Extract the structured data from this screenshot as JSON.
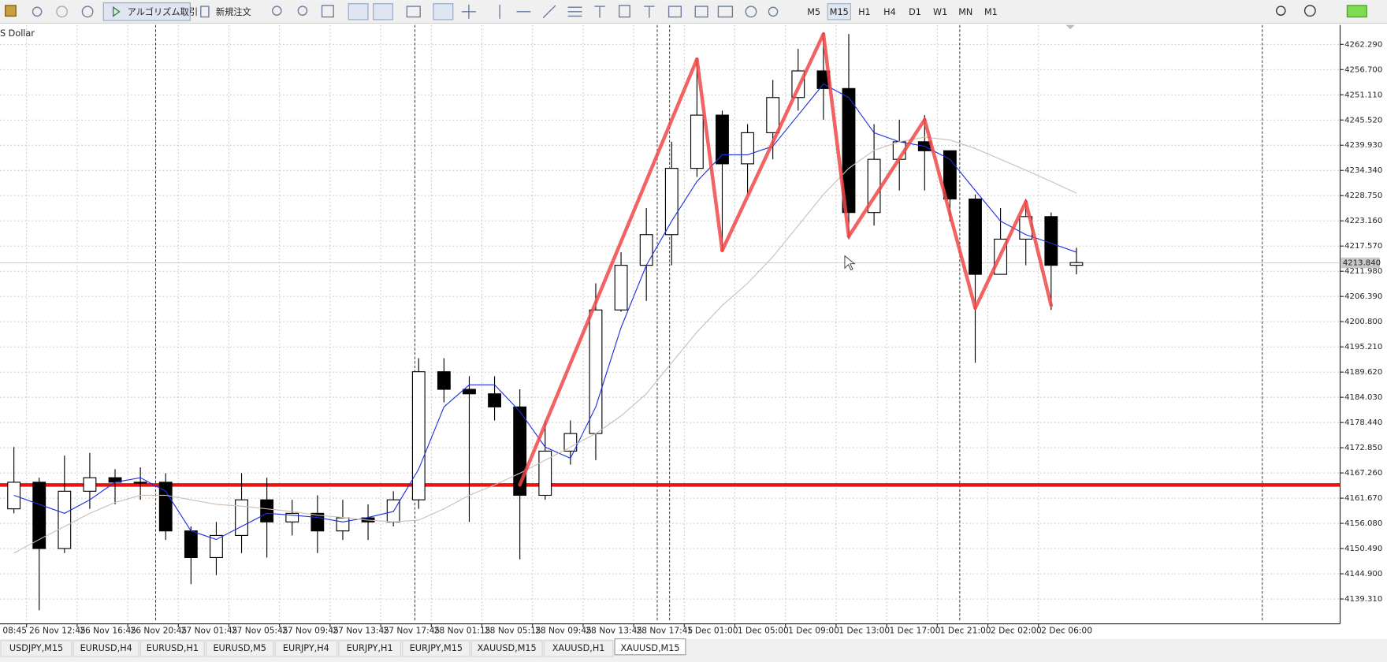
{
  "toolbar": {
    "algo": "アルゴリズム取引",
    "order": "新規注文",
    "timeframes": [
      "M5",
      "M15",
      "H1",
      "H4",
      "D1",
      "W1",
      "MN",
      "M1"
    ]
  },
  "tabs": [
    "USDJPY,M15",
    "EURUSD,H4",
    "EURUSD,H1",
    "EURUSD,M5",
    "EURJPY,H4",
    "EURJPY,H1",
    "EURJPY,M15",
    "XAUUSD,M15",
    "XAUUSD,H1",
    "XAUUSD,M15"
  ],
  "chart_data": {
    "type": "candlestick",
    "title": "S Dollar",
    "categories": [
      "08:45",
      null,
      "26 Nov 12:45",
      null,
      "26 Nov 16:45",
      null,
      "26 Nov 20:45",
      null,
      "27 Nov 01:45",
      null,
      "27 Nov 05:45",
      null,
      "27 Nov 09:45",
      null,
      "27 Nov 13:45",
      null,
      "27 Nov 17:45",
      null,
      "28 Nov 01:15",
      null,
      "28 Nov 05:15",
      null,
      "28 Nov 09:45",
      null,
      "28 Nov 13:45",
      null,
      "28 Nov 17:45",
      null,
      "1 Dec 01:00",
      null,
      "1 Dec 05:00",
      null,
      "1 Dec 09:00",
      null,
      "1 Dec 13:00",
      null,
      "1 Dec 17:00",
      null,
      "1 Dec 21:00",
      null,
      "2 Dec 02:00",
      null,
      "2 Dec 06:00",
      null
    ],
    "open": [
      null,
      4159.3,
      4165.2,
      4150.5,
      4163.2,
      4166.2,
      4165.2,
      4165.2,
      4154.4,
      4148.5,
      4153.4,
      4161.3,
      4156.4,
      4158.3,
      4154.4,
      4157.3,
      4156.4,
      4161.3,
      4189.7,
      4185.8,
      4184.8,
      4181.9,
      4162.3,
      4172.1,
      4176.0,
      4203.4,
      4213.3,
      4220.1,
      4234.8,
      4246.6,
      4235.8,
      4242.7,
      4250.5,
      4256.4,
      4252.5,
      4225.0,
      4236.8,
      4240.7,
      4238.7,
      4228.0,
      4211.3,
      4219.1,
      4224.1,
      4213.3
    ],
    "high": [
      null,
      4173.0,
      4166.2,
      4171.1,
      4171.7,
      4168.1,
      4168.5,
      4167.2,
      4155.4,
      4156.4,
      4167.2,
      4166.2,
      4161.3,
      4162.3,
      4161.3,
      4160.3,
      4163.2,
      4192.7,
      4192.7,
      4188.7,
      4188.7,
      4185.8,
      4178.9,
      4178.9,
      4209.3,
      4216.2,
      4226.0,
      4240.7,
      4258.4,
      4247.6,
      4244.6,
      4254.4,
      4261.3,
      4264.6,
      4264.6,
      4244.6,
      4245.6,
      4246.6,
      4238.7,
      4229.0,
      4226.0,
      4228.0,
      4225.0,
      4217.2
    ],
    "low": [
      null,
      4158.3,
      4136.8,
      4149.5,
      4159.3,
      4160.3,
      4161.3,
      4152.4,
      4142.6,
      4144.6,
      4149.5,
      4148.5,
      4153.4,
      4149.5,
      4152.4,
      4152.4,
      4155.4,
      4159.3,
      4182.9,
      4156.4,
      4178.9,
      4148.1,
      4161.3,
      4169.1,
      4170.1,
      4203.0,
      4205.4,
      4213.3,
      4232.9,
      4216.2,
      4229.0,
      4236.8,
      4247.6,
      4245.6,
      4219.1,
      4222.1,
      4229.9,
      4229.9,
      4223.1,
      4191.7,
      4211.3,
      4213.3,
      4203.4,
      4211.3
    ],
    "close": [
      null,
      4165.2,
      4150.5,
      4163.2,
      4166.2,
      4165.2,
      4165.2,
      4154.4,
      4148.5,
      4153.4,
      4161.3,
      4156.4,
      4158.3,
      4154.4,
      4157.3,
      4156.4,
      4161.3,
      4189.7,
      4185.8,
      4184.8,
      4181.9,
      4162.3,
      4172.1,
      4176.0,
      4203.4,
      4213.3,
      4220.1,
      4234.8,
      4246.6,
      4235.8,
      4242.7,
      4250.5,
      4256.4,
      4252.5,
      4225.0,
      4236.8,
      4240.7,
      4238.7,
      4228.0,
      4211.3,
      4219.1,
      4224.1,
      4213.3,
      4213.9
    ],
    "series": [
      {
        "color": "#1c2fe0",
        "values": [
          null,
          4162.3,
          4160.3,
          4158.3,
          4161.3,
          4165.2,
          4166.2,
          4163.2,
          4154.4,
          4152.5,
          4155.4,
          4158.3,
          4157.9,
          4157.4,
          4156.4,
          4157.4,
          4158.7,
          4168.1,
          4181.9,
          4186.8,
          4186.8,
          4180.9,
          4173.0,
          4170.5,
          4181.9,
          4199.5,
          4213.3,
          4223.1,
          4231.9,
          4237.8,
          4237.8,
          4239.7,
          4246.6,
          4253.5,
          4250.5,
          4242.7,
          4240.7,
          4239.7,
          4236.8,
          4229.9,
          4223.1,
          4220.1,
          4218.2,
          4216.2
        ]
      },
      {
        "color": "#cdbfb3",
        "values": [
          null,
          4149.5,
          4152.5,
          4155.4,
          4158.3,
          4160.7,
          4162.3,
          4162.3,
          4161.3,
          4160.3,
          4159.9,
          4159.3,
          4158.7,
          4157.9,
          4157.4,
          4156.8,
          4156.4,
          4156.8,
          4159.3,
          4162.3,
          4164.6,
          4167.2,
          4170.1,
          4173.0,
          4176.0,
          4179.9,
          4184.8,
          4191.7,
          4198.5,
          4204.4,
          4209.3,
          4215.2,
          4222.1,
          4229.0,
          4234.8,
          4238.8,
          4240.7,
          4241.7,
          4241.1,
          4239.2,
          4236.8,
          4234.4,
          4231.9,
          4229.3
        ]
      }
    ],
    "zigzag": {
      "color": "#f04848",
      "values": [
        null,
        null,
        null,
        null,
        null,
        null,
        null,
        null,
        null,
        null,
        null,
        null,
        null,
        null,
        null,
        null,
        null,
        null,
        null,
        null,
        null,
        4164.6,
        null,
        null,
        null,
        null,
        null,
        null,
        4259.0,
        4216.6,
        null,
        null,
        null,
        4264.6,
        4219.7,
        null,
        null,
        4245.6,
        null,
        4203.8,
        null,
        4227.4,
        4204.4,
        null
      ]
    },
    "hline": {
      "color": "#ee1111",
      "value": 4164.6
    },
    "current_price": {
      "value": 4213.84,
      "label": "4213.840"
    },
    "ylim": [
      4134.2,
      4266.6
    ],
    "yticks": [
      {
        "value": 4262.29,
        "label": "4262.290"
      },
      {
        "value": 4256.7,
        "label": "4256.700"
      },
      {
        "value": 4251.11,
        "label": "4251.110"
      },
      {
        "value": 4245.52,
        "label": "4245.520"
      },
      {
        "value": 4239.93,
        "label": "4239.930"
      },
      {
        "value": 4234.34,
        "label": "4234.340"
      },
      {
        "value": 4228.75,
        "label": "4228.750"
      },
      {
        "value": 4223.16,
        "label": "4223.160"
      },
      {
        "value": 4217.57,
        "label": "4217.570"
      },
      {
        "value": 4211.98,
        "label": "4211.980"
      },
      {
        "value": 4206.39,
        "label": "4206.390"
      },
      {
        "value": 4200.8,
        "label": "4200.800"
      },
      {
        "value": 4195.21,
        "label": "4195.210"
      },
      {
        "value": 4189.62,
        "label": "4189.620"
      },
      {
        "value": 4184.03,
        "label": "4184.030"
      },
      {
        "value": 4178.44,
        "label": "4178.440"
      },
      {
        "value": 4172.85,
        "label": "4172.850"
      },
      {
        "value": 4167.26,
        "label": "4167.260"
      },
      {
        "value": 4161.67,
        "label": "4161.670"
      },
      {
        "value": 4156.08,
        "label": "4156.080"
      },
      {
        "value": 4150.49,
        "label": "4150.490"
      },
      {
        "value": 4144.9,
        "label": "4144.900"
      },
      {
        "value": 4139.31,
        "label": "4139.310"
      }
    ],
    "grid": true
  }
}
